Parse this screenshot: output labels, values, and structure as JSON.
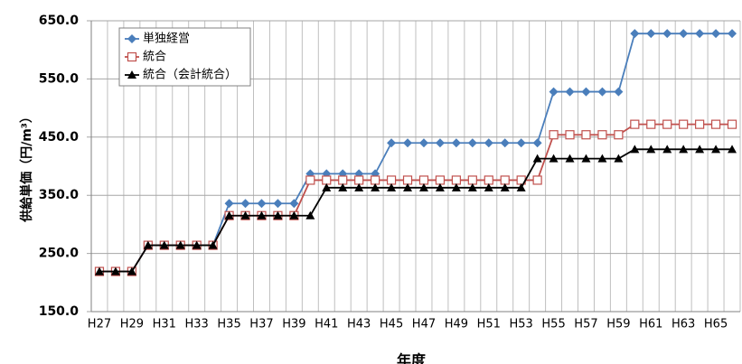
{
  "chart_data": {
    "type": "line",
    "x_label": "年度",
    "y_label": "供給単価（円/m³）",
    "categories": [
      "H27",
      null,
      "H29",
      null,
      "H31",
      null,
      "H33",
      null,
      "H35",
      null,
      "H37",
      null,
      "H39",
      null,
      "H41",
      null,
      "H43",
      null,
      "H45",
      null,
      "H47",
      null,
      "H49",
      null,
      "H51",
      null,
      "H53",
      null,
      "H55",
      null,
      "H57",
      null,
      "H59",
      null,
      "H61",
      null,
      "H63",
      null,
      "H65",
      null
    ],
    "series": [
      {
        "name": "単独経営",
        "color": "#4a7ebb",
        "marker": "diamond",
        "values": [
          219,
          219,
          219,
          264,
          264,
          264,
          264,
          264,
          336,
          336,
          336,
          336,
          336,
          387,
          387,
          387,
          387,
          387,
          440,
          440,
          440,
          440,
          440,
          440,
          440,
          440,
          440,
          440,
          528,
          528,
          528,
          528,
          528,
          628,
          628,
          628,
          628,
          628,
          628,
          628
        ]
      },
      {
        "name": "統合",
        "color": "#c0504d",
        "marker": "square",
        "values": [
          219,
          219,
          219,
          264,
          264,
          264,
          264,
          264,
          315,
          315,
          315,
          315,
          315,
          376,
          376,
          376,
          376,
          376,
          376,
          376,
          376,
          376,
          376,
          376,
          376,
          376,
          376,
          376,
          454,
          454,
          454,
          454,
          454,
          472,
          472,
          472,
          472,
          472,
          472,
          472
        ]
      },
      {
        "name": "統合（会計統合）",
        "color": "#000000",
        "marker": "triangle",
        "values": [
          219,
          219,
          219,
          264,
          264,
          264,
          264,
          264,
          315,
          315,
          315,
          315,
          315,
          315,
          363,
          363,
          363,
          363,
          363,
          363,
          363,
          363,
          363,
          363,
          363,
          363,
          363,
          413,
          413,
          413,
          413,
          413,
          413,
          429,
          429,
          429,
          429,
          429,
          429,
          429
        ]
      }
    ],
    "ylim": [
      150,
      650
    ],
    "yticks": [
      {
        "value": 150,
        "label": "150.0"
      },
      {
        "value": 250,
        "label": "250.0"
      },
      {
        "value": 350,
        "label": "350.0"
      },
      {
        "value": 450,
        "label": "450.0"
      },
      {
        "value": 550,
        "label": "550.0"
      },
      {
        "value": 650,
        "label": "650.0"
      }
    ],
    "grid": true,
    "legend": "top-left"
  }
}
